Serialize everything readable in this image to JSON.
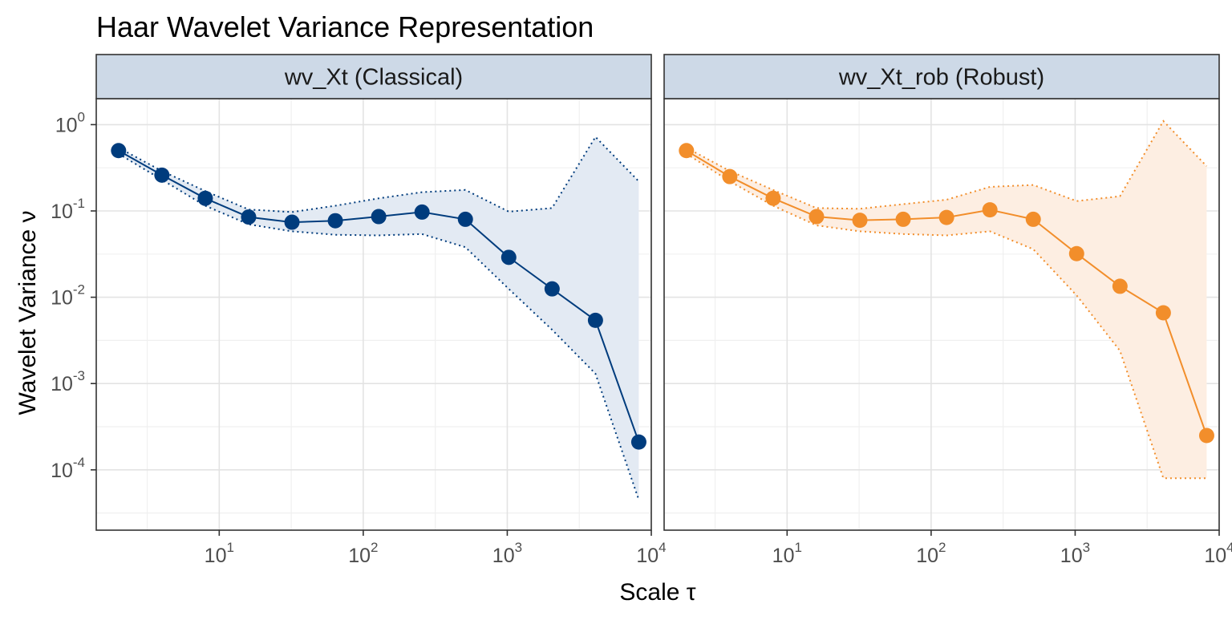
{
  "chart_data": {
    "type": "line",
    "title": "Haar Wavelet Variance Representation",
    "xlabel": "Scale τ",
    "ylabel": "Wavelet Variance ν",
    "x_scale": "log10",
    "y_scale": "log10",
    "xlim": [
      1.4,
      10000
    ],
    "ylim": [
      2e-05,
      2
    ],
    "x_tick_values": [
      10,
      100,
      1000,
      10000
    ],
    "x_tick_labels": [
      {
        "base": "10",
        "exp": "1"
      },
      {
        "base": "10",
        "exp": "2"
      },
      {
        "base": "10",
        "exp": "3"
      },
      {
        "base": "10",
        "exp": "4"
      }
    ],
    "y_tick_values": [
      1,
      0.1,
      0.01,
      0.001,
      0.0001
    ],
    "y_tick_labels": [
      {
        "base": "10",
        "exp": "0"
      },
      {
        "base": "10",
        "exp": "-1"
      },
      {
        "base": "10",
        "exp": "-2"
      },
      {
        "base": "10",
        "exp": "-3"
      },
      {
        "base": "10",
        "exp": "-4"
      }
    ],
    "grid": true,
    "x": [
      2,
      4,
      8,
      16,
      32,
      64,
      128,
      256,
      512,
      1024,
      2048,
      4096,
      8192
    ],
    "panels": [
      {
        "strip_label": "wv_Xt (Classical)",
        "color": "#003C7D",
        "fill": "#E3EAF3",
        "values": [
          0.5,
          0.26,
          0.14,
          0.085,
          0.074,
          0.077,
          0.086,
          0.097,
          0.08,
          0.029,
          0.0125,
          0.0054,
          0.00021
        ],
        "ci_low": [
          0.46,
          0.23,
          0.115,
          0.07,
          0.058,
          0.053,
          0.052,
          0.054,
          0.038,
          0.0125,
          0.0042,
          0.0013,
          4.5e-05
        ],
        "ci_high": [
          0.54,
          0.29,
          0.17,
          0.104,
          0.097,
          0.115,
          0.14,
          0.165,
          0.175,
          0.098,
          0.108,
          0.72,
          0.22
        ]
      },
      {
        "strip_label": "wv_Xt_rob (Robust)",
        "color": "#F28E2B",
        "fill": "#FDEEE2",
        "values": [
          0.5,
          0.25,
          0.14,
          0.086,
          0.078,
          0.08,
          0.084,
          0.103,
          0.08,
          0.032,
          0.0134,
          0.0066,
          0.00025
        ],
        "ci_low": [
          0.46,
          0.22,
          0.115,
          0.068,
          0.058,
          0.054,
          0.052,
          0.058,
          0.036,
          0.0105,
          0.0024,
          8e-05,
          8e-05
        ],
        "ci_high": [
          0.54,
          0.29,
          0.175,
          0.108,
          0.106,
          0.12,
          0.135,
          0.19,
          0.2,
          0.13,
          0.148,
          1.1,
          0.33
        ]
      }
    ]
  }
}
